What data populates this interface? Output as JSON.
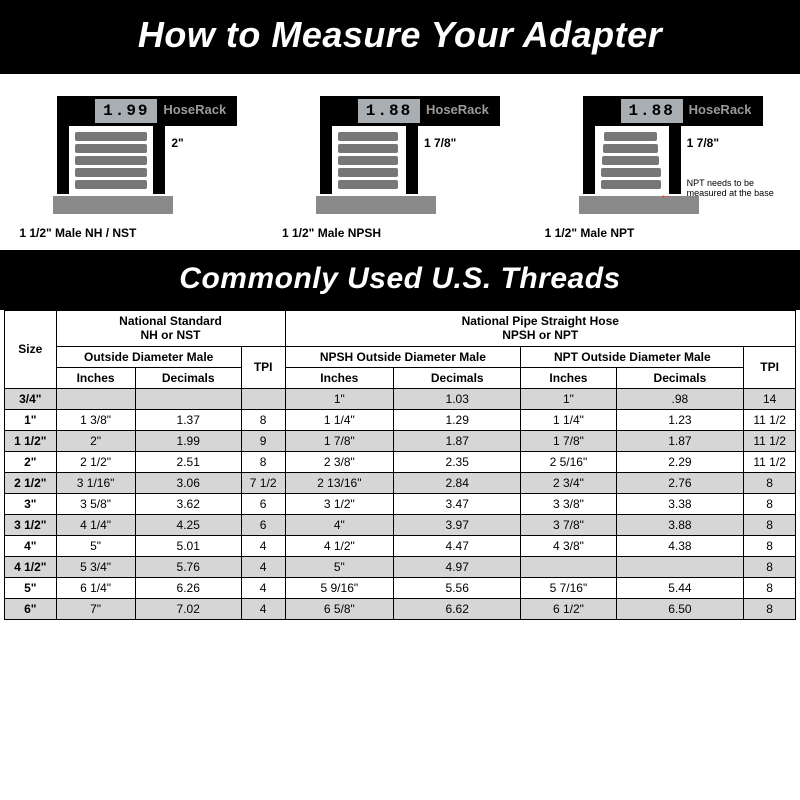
{
  "banner1": "How to Measure Your Adapter",
  "banner2": "Commonly Used U.S. Threads",
  "brand": "HoseRack",
  "diagrams": [
    {
      "reading": "1.99",
      "size_label": "2\"",
      "caption": "1 1/2\" Male NH / NST",
      "jaw": "a",
      "threads": "a"
    },
    {
      "reading": "1.88",
      "size_label": "1 7/8\"",
      "caption": "1 1/2\" Male NPSH",
      "jaw": "b",
      "threads": "b"
    },
    {
      "reading": "1.88",
      "size_label": "1 7/8\"",
      "caption": "1 1/2\" Male NPT",
      "jaw": "b",
      "threads": "taper",
      "note": "NPT needs to be measured at the base"
    }
  ],
  "table": {
    "group_labels": {
      "size": "Size",
      "ns": {
        "title": "National Standard",
        "subtitle": "NH or NST",
        "od": "Outside Diameter Male",
        "tpi": "TPI"
      },
      "np": {
        "title": "National Pipe Straight Hose",
        "subtitle": "NPSH or NPT",
        "npsh": "NPSH Outside Diameter Male",
        "npt": "NPT Outside Diameter Male",
        "tpi": "TPI"
      },
      "inches": "Inches",
      "decimals": "Decimals"
    },
    "rows": [
      [
        "3/4\"",
        "",
        "",
        "",
        "1\"",
        "1.03",
        "1\"",
        ".98",
        "14"
      ],
      [
        "1\"",
        "1 3/8\"",
        "1.37",
        "8",
        "1 1/4\"",
        "1.29",
        "1 1/4\"",
        "1.23",
        "11 1/2"
      ],
      [
        "1 1/2\"",
        "2\"",
        "1.99",
        "9",
        "1 7/8\"",
        "1.87",
        "1 7/8\"",
        "1.87",
        "11 1/2"
      ],
      [
        "2\"",
        "2 1/2\"",
        "2.51",
        "8",
        "2 3/8\"",
        "2.35",
        "2 5/16\"",
        "2.29",
        "11 1/2"
      ],
      [
        "2 1/2\"",
        "3 1/16\"",
        "3.06",
        "7 1/2",
        "2 13/16\"",
        "2.84",
        "2 3/4\"",
        "2.76",
        "8"
      ],
      [
        "3\"",
        "3 5/8\"",
        "3.62",
        "6",
        "3 1/2\"",
        "3.47",
        "3 3/8\"",
        "3.38",
        "8"
      ],
      [
        "3 1/2\"",
        "4 1/4\"",
        "4.25",
        "6",
        "4\"",
        "3.97",
        "3 7/8\"",
        "3.88",
        "8"
      ],
      [
        "4\"",
        "5\"",
        "5.01",
        "4",
        "4 1/2\"",
        "4.47",
        "4 3/8\"",
        "4.38",
        "8"
      ],
      [
        "4 1/2\"",
        "5 3/4\"",
        "5.76",
        "4",
        "5\"",
        "4.97",
        "",
        "",
        "8"
      ],
      [
        "5\"",
        "6 1/4\"",
        "6.26",
        "4",
        "5 9/16\"",
        "5.56",
        "5 7/16\"",
        "5.44",
        "8"
      ],
      [
        "6\"",
        "7\"",
        "7.02",
        "4",
        "6 5/8\"",
        "6.62",
        "6 1/2\"",
        "6.50",
        "8"
      ]
    ]
  }
}
